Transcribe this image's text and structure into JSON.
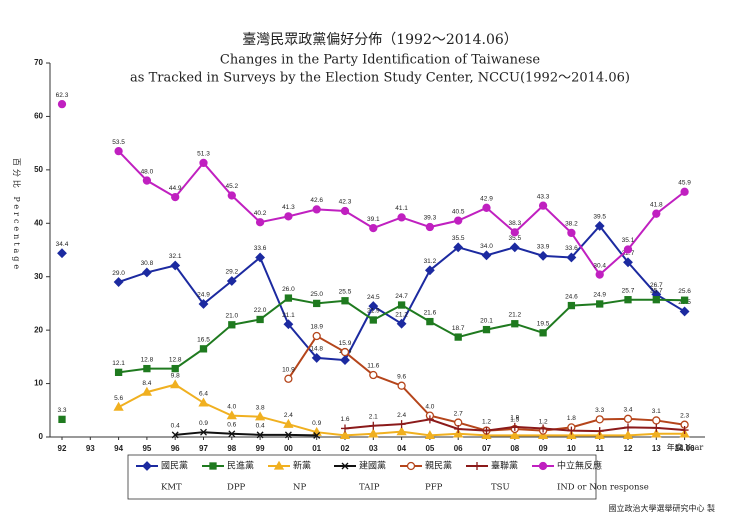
{
  "chart_data": {
    "type": "line",
    "title": "臺灣民眾政黨偏好分佈（1992～2014.06）",
    "subtitle_lines": [
      "Changes in the Party Identification of Taiwanese",
      "as Tracked in Surveys by the Election Study Center, NCCU(1992～2014.06)"
    ],
    "y_label": "百分比 Percentage",
    "x_label": "年度 Year",
    "footnote": "國立政治大學選舉研究中心 製",
    "categories": [
      "92",
      "93",
      "94",
      "95",
      "96",
      "97",
      "98",
      "99",
      "00",
      "01",
      "02",
      "03",
      "04",
      "05",
      "06",
      "07",
      "08",
      "09",
      "10",
      "11",
      "12",
      "13",
      "14.06"
    ],
    "ylim": [
      0,
      70
    ],
    "yticks": [
      0,
      10,
      20,
      30,
      40,
      50,
      60,
      70
    ],
    "series": [
      {
        "name": "國民黨",
        "name_en": "KMT",
        "color": "#1c2aa0",
        "marker": "diamond",
        "values": [
          34.4,
          null,
          29.0,
          30.8,
          32.1,
          24.9,
          29.2,
          33.6,
          21.1,
          14.8,
          14.4,
          24.5,
          21.2,
          31.2,
          35.5,
          34.0,
          35.5,
          33.9,
          33.6,
          39.5,
          32.7,
          26.7,
          23.5
        ],
        "value_labels": [
          "34.4",
          null,
          "29.0",
          "30.8",
          "32.1",
          "24.9",
          "29.2",
          "33.6",
          "21.1",
          "14.8",
          "14.4",
          "24.5",
          "21.2",
          "31.2",
          "35.5",
          "34.0",
          "35.5",
          "33.9",
          "33.6",
          "39.5",
          "32.7",
          "26.7",
          "23.5"
        ]
      },
      {
        "name": "民進黨",
        "name_en": "DPP",
        "color": "#1f7a1f",
        "marker": "square",
        "values": [
          3.3,
          null,
          12.1,
          12.8,
          12.8,
          16.5,
          21.0,
          22.0,
          26.0,
          25.0,
          25.5,
          21.9,
          24.7,
          21.6,
          18.7,
          20.1,
          21.2,
          19.5,
          24.6,
          24.9,
          25.7,
          25.7,
          25.6
        ],
        "value_labels": [
          "3.3",
          null,
          "12.1",
          "12.8",
          "12.8",
          "16.5",
          "21.0",
          "22.0",
          "26.0",
          "25.0",
          "25.5",
          "21.9",
          "24.7",
          "21.6",
          "18.7",
          "20.1",
          "21.2",
          "19.5",
          "24.6",
          "24.9",
          "25.7",
          "25.7",
          "25.6"
        ]
      },
      {
        "name": "新黨",
        "name_en": "NP",
        "color": "#f0b020",
        "marker": "triangle",
        "values": [
          null,
          null,
          5.6,
          8.4,
          9.8,
          6.4,
          4.0,
          3.8,
          2.4,
          0.9,
          0.3,
          0.6,
          1.0,
          0.3,
          0.6,
          0.3,
          0.3,
          0.3,
          0.3,
          0.3,
          0.3,
          0.6,
          0.6
        ],
        "value_labels": [
          null,
          null,
          "5.6",
          "8.4",
          "9.8",
          "6.4",
          "4.0",
          "3.8",
          "2.4",
          "0.9",
          null,
          null,
          null,
          null,
          null,
          null,
          null,
          null,
          null,
          null,
          null,
          null,
          null
        ]
      },
      {
        "name": "建國黨",
        "name_en": "TAIP",
        "color": "#111111",
        "marker": "x",
        "values": [
          null,
          null,
          null,
          null,
          0.4,
          0.9,
          0.6,
          0.4,
          0.4,
          0.3,
          null,
          null,
          null,
          null,
          null,
          null,
          null,
          null,
          null,
          null,
          null,
          null,
          null
        ],
        "value_labels": [
          null,
          null,
          null,
          null,
          "0.4",
          "0.9",
          "0.6",
          "0.4",
          null,
          null,
          null,
          null,
          null,
          null,
          null,
          null,
          null,
          null,
          null,
          null,
          null,
          null,
          null
        ]
      },
      {
        "name": "親民黨",
        "name_en": "PFP",
        "color": "#b5451b",
        "marker": "ocircle",
        "values": [
          null,
          null,
          null,
          null,
          null,
          null,
          null,
          null,
          10.9,
          18.9,
          15.9,
          11.6,
          9.6,
          4.0,
          2.7,
          1.2,
          1.5,
          1.2,
          1.8,
          3.3,
          3.4,
          3.1,
          2.3
        ],
        "value_labels": [
          null,
          null,
          null,
          null,
          null,
          null,
          null,
          null,
          "10.9",
          "18.9",
          "15.9",
          "11.6",
          "9.6",
          "4.0",
          "2.7",
          "1.2",
          "1.5",
          "1.2",
          "1.8",
          "3.3",
          "3.4",
          "3.1",
          "2.3"
        ]
      },
      {
        "name": "臺聯黨",
        "name_en": "TSU",
        "color": "#8b1a1a",
        "marker": "plus",
        "values": [
          null,
          null,
          null,
          null,
          null,
          null,
          null,
          null,
          null,
          null,
          1.6,
          2.1,
          2.4,
          3.3,
          1.5,
          1.2,
          1.9,
          1.6,
          1.2,
          1.1,
          1.8,
          1.7,
          1.3
        ],
        "value_labels": [
          null,
          null,
          null,
          null,
          null,
          null,
          null,
          null,
          null,
          null,
          "1.6",
          "2.1",
          "2.4",
          null,
          null,
          null,
          "1.9",
          null,
          null,
          null,
          null,
          null,
          null
        ]
      },
      {
        "name": "中立無反應",
        "name_en": "IND or Non response",
        "color": "#c020c0",
        "marker": "circle",
        "values": [
          62.3,
          null,
          53.5,
          48.0,
          44.9,
          51.3,
          45.2,
          40.2,
          41.3,
          42.6,
          42.3,
          39.1,
          41.1,
          39.3,
          40.5,
          42.9,
          38.3,
          43.3,
          38.2,
          30.4,
          35.1,
          41.8,
          45.9
        ],
        "value_labels": [
          "62.3",
          null,
          "53.5",
          "48.0",
          "44.9",
          "51.3",
          "45.2",
          "40.2",
          "41.3",
          "42.6",
          "42.3",
          "39.1",
          "41.1",
          "39.3",
          "40.5",
          "42.9",
          "38.3",
          "43.3",
          "38.2",
          "30.4",
          "35.1",
          "41.8",
          "45.9"
        ]
      }
    ]
  }
}
